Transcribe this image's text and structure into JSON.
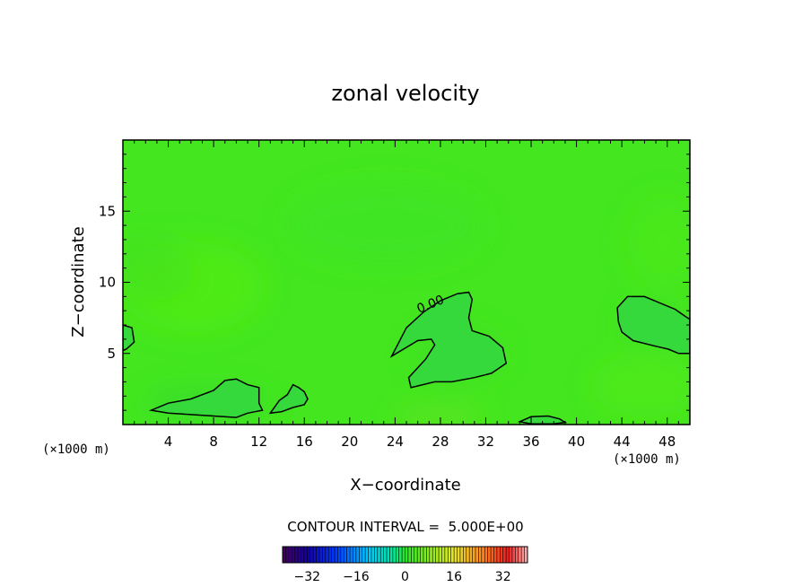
{
  "chart_data": {
    "type": "heatmap",
    "title": "zonal velocity",
    "xlabel": "X−coordinate",
    "ylabel": "Z−coordinate",
    "x_unit_label": "(×1000 m)",
    "y_unit_label": "(×1000 m)",
    "xlim": [
      0,
      50
    ],
    "ylim": [
      0,
      20
    ],
    "x_ticks": [
      4,
      8,
      12,
      16,
      20,
      24,
      28,
      32,
      36,
      40,
      44,
      48
    ],
    "y_ticks": [
      5,
      10,
      15
    ],
    "contour_interval_text": "CONTOUR INTERVAL =  5.000E+00",
    "contour_interval": 5.0,
    "contour_label": "0.00",
    "colorbar": {
      "range": [
        -40,
        40
      ],
      "ticks": [
        -32,
        -16,
        0,
        16,
        32
      ],
      "tick_labels": [
        "−32",
        "−16",
        "0",
        "16",
        "32"
      ]
    },
    "field_note_color": "#44e61f",
    "zero_regions": [
      {
        "name": "region-left-edge",
        "points": [
          [
            0,
            7
          ],
          [
            0.8,
            6.8
          ],
          [
            1,
            5.8
          ],
          [
            0.3,
            5.3
          ],
          [
            0,
            5.2
          ]
        ]
      },
      {
        "name": "region-center",
        "points": [
          [
            23.7,
            4.8
          ],
          [
            25,
            6.8
          ],
          [
            26.5,
            7.9
          ],
          [
            28,
            8.7
          ],
          [
            29.5,
            9.2
          ],
          [
            30.5,
            9.3
          ],
          [
            30.8,
            8.8
          ],
          [
            30.5,
            7.5
          ],
          [
            30.8,
            6.6
          ],
          [
            32.3,
            6.2
          ],
          [
            33.5,
            5.4
          ],
          [
            33.8,
            4.3
          ],
          [
            32.5,
            3.6
          ],
          [
            31,
            3.3
          ],
          [
            29,
            3.0
          ],
          [
            27.5,
            3.0
          ],
          [
            25.4,
            2.6
          ],
          [
            25.2,
            3.3
          ],
          [
            26.7,
            4.6
          ],
          [
            27.5,
            5.6
          ],
          [
            27.2,
            6.0
          ],
          [
            26,
            5.9
          ]
        ]
      },
      {
        "name": "region-right",
        "points": [
          [
            43.6,
            8.2
          ],
          [
            44.5,
            9.0
          ],
          [
            46,
            9.0
          ],
          [
            47.5,
            8.5
          ],
          [
            48.7,
            8.1
          ],
          [
            49.6,
            7.6
          ],
          [
            50,
            7.4
          ],
          [
            50,
            5.0
          ],
          [
            49,
            5.0
          ],
          [
            48.1,
            5.3
          ],
          [
            47,
            5.5
          ],
          [
            45,
            5.9
          ],
          [
            44,
            6.5
          ],
          [
            43.7,
            7.2
          ]
        ]
      },
      {
        "name": "region-bottom-left",
        "points": [
          [
            2.5,
            1.0
          ],
          [
            4,
            1.5
          ],
          [
            6,
            1.8
          ],
          [
            8,
            2.4
          ],
          [
            9,
            3.1
          ],
          [
            10,
            3.2
          ],
          [
            11,
            2.8
          ],
          [
            12,
            2.6
          ],
          [
            12,
            1.5
          ],
          [
            12.3,
            1.0
          ],
          [
            11,
            0.8
          ],
          [
            10,
            0.5
          ],
          [
            8,
            0.6
          ],
          [
            6,
            0.7
          ],
          [
            4,
            0.8
          ]
        ]
      },
      {
        "name": "region-bottom-mid",
        "points": [
          [
            13,
            0.8
          ],
          [
            13.8,
            1.7
          ],
          [
            14.5,
            2.1
          ],
          [
            15,
            2.8
          ],
          [
            15.5,
            2.6
          ],
          [
            16,
            2.3
          ],
          [
            16.3,
            1.8
          ],
          [
            16,
            1.4
          ],
          [
            15,
            1.2
          ],
          [
            14,
            0.9
          ]
        ]
      },
      {
        "name": "region-bottom-right",
        "points": [
          [
            35,
            0.2
          ],
          [
            36,
            0.55
          ],
          [
            37.5,
            0.6
          ],
          [
            38.5,
            0.4
          ],
          [
            39,
            0.15
          ],
          [
            38,
            0.05
          ],
          [
            36,
            0.05
          ]
        ]
      }
    ]
  }
}
